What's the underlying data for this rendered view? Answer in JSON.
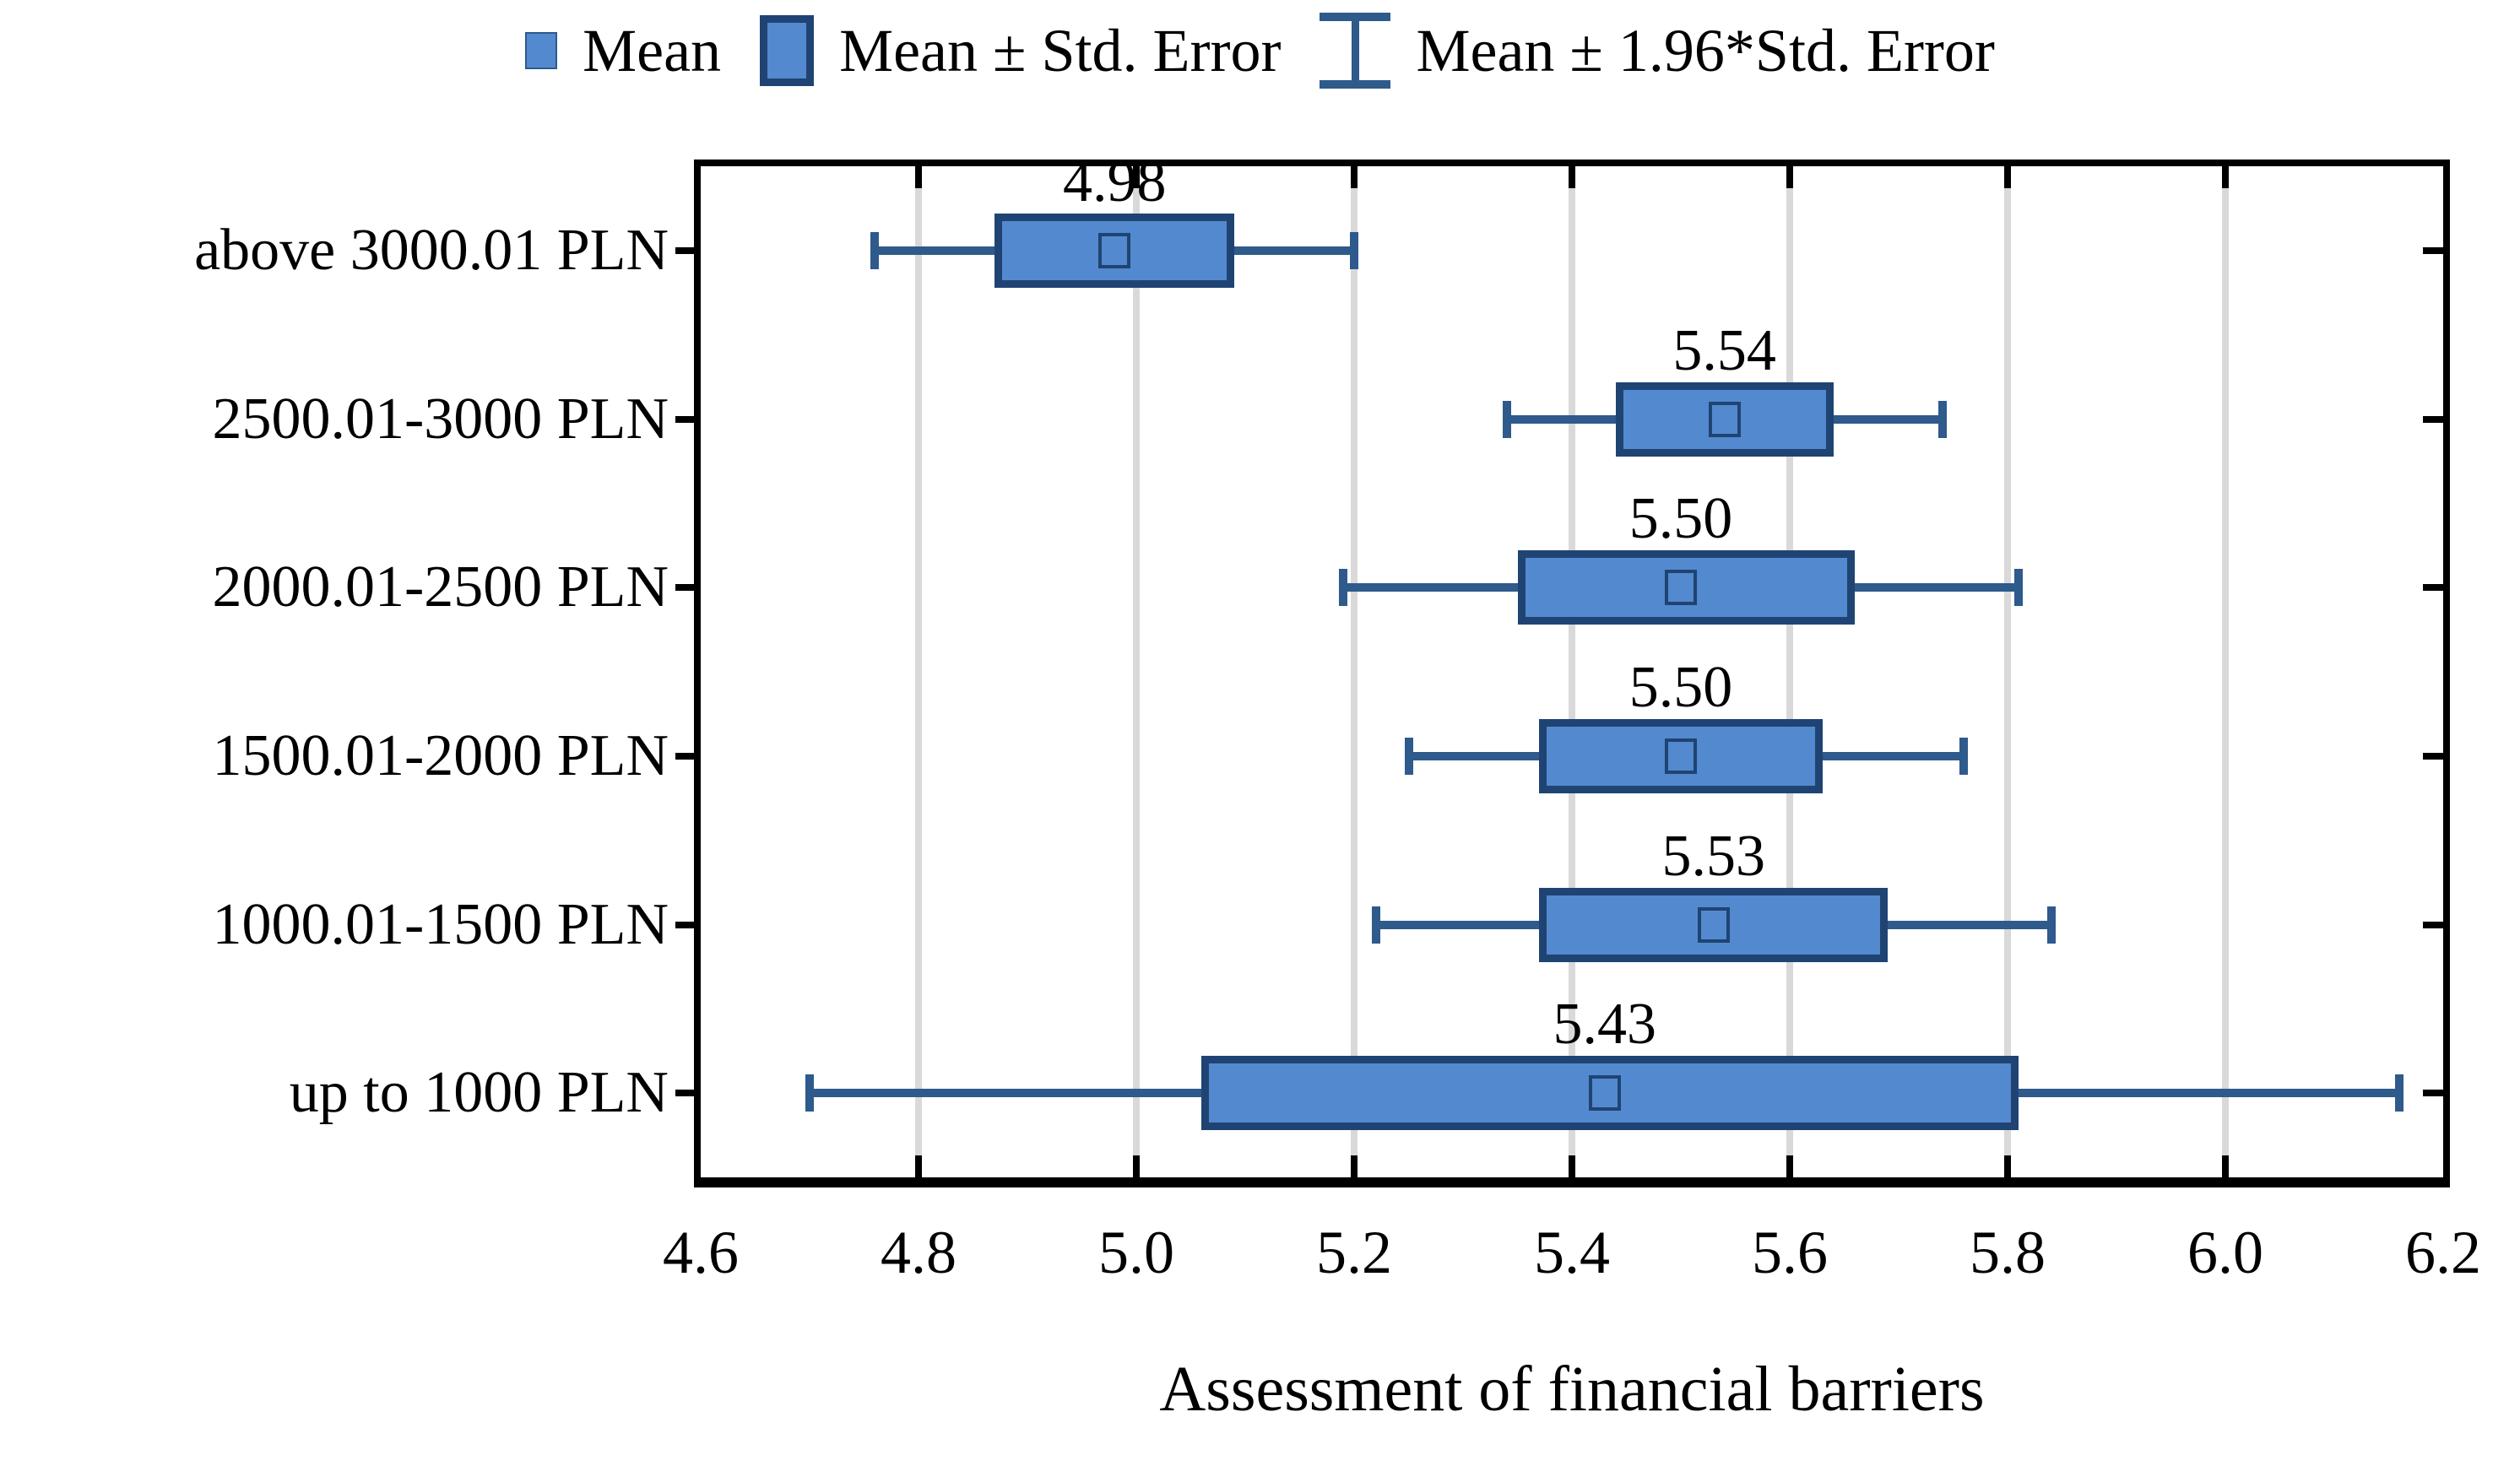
{
  "legend": {
    "items": [
      {
        "symbol": "mean-square-icon",
        "label": "Mean"
      },
      {
        "symbol": "std-error-box-icon",
        "label": "Mean ± Std. Error"
      },
      {
        "symbol": "whisker-ibeam-icon",
        "label": "Mean ± 1.96*Std. Error"
      }
    ]
  },
  "chart_data": {
    "type": "box",
    "orientation": "horizontal",
    "title": "",
    "xlabel": "Assessment of financial barriers",
    "ylabel": "",
    "xlim": [
      4.6,
      6.2
    ],
    "x_ticks": [
      "4.6",
      "4.8",
      "5.0",
      "5.2",
      "5.4",
      "5.6",
      "5.8",
      "6.0",
      "6.2"
    ],
    "grid": "vertical-gridlines-at-ticks",
    "legend_position": "top-center",
    "categories": [
      "above 3000.01 PLN",
      "2500.01-3000 PLN",
      "2000.01-2500 PLN",
      "1500.01-2000 PLN",
      "1000.01-1500 PLN",
      "up to 1000 PLN"
    ],
    "mean_labels": [
      "4.98",
      "5.54",
      "5.50",
      "5.50",
      "5.53",
      "5.43"
    ],
    "series": [
      {
        "name": "Mean",
        "values": [
          4.98,
          5.54,
          5.5,
          5.5,
          5.53,
          5.43
        ]
      },
      {
        "name": "Mean ± Std. Error",
        "low": [
          4.87,
          5.44,
          5.35,
          5.37,
          5.37,
          5.06
        ],
        "high": [
          5.09,
          5.64,
          5.66,
          5.63,
          5.69,
          5.81
        ]
      },
      {
        "name": "Mean ± 1.96*Std. Error",
        "low": [
          4.76,
          5.34,
          5.19,
          5.25,
          5.22,
          4.7
        ],
        "high": [
          5.2,
          5.74,
          5.81,
          5.76,
          5.84,
          6.16
        ]
      }
    ]
  },
  "colors": {
    "box_fill": "#5389CE",
    "box_border": "#1F4473",
    "whisker": "#2E5A8C",
    "gridline": "#D9D9D9",
    "axis": "#000000",
    "text": "#000000"
  }
}
